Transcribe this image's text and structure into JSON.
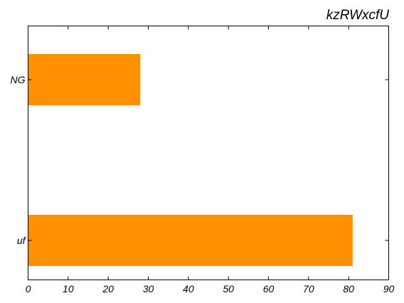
{
  "chart_data": {
    "type": "bar",
    "orientation": "horizontal",
    "title": "kzRWxcfU",
    "xlabel": "",
    "ylabel": "",
    "categories": [
      "NG",
      "uf"
    ],
    "values": [
      28,
      81
    ],
    "xlim": [
      0,
      90
    ],
    "xticks": [
      "0",
      "10",
      "20",
      "30",
      "40",
      "50",
      "60",
      "70",
      "80",
      "90"
    ],
    "grid": false,
    "legend": "none",
    "bar_color": "#ff9100"
  }
}
